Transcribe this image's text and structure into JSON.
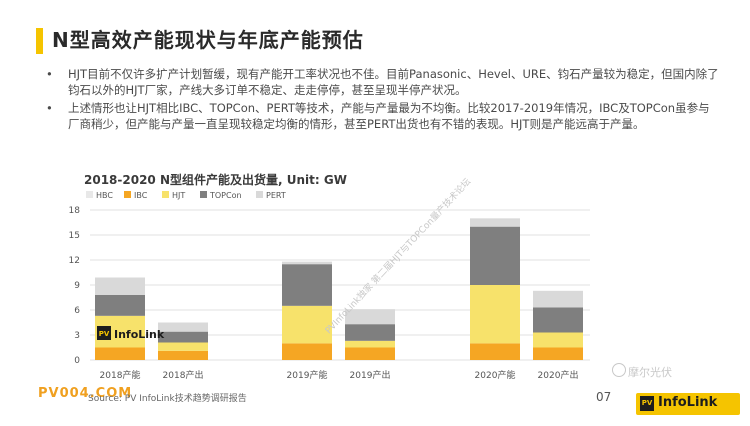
{
  "title": "N型高效产能现状与年底产能预估",
  "bullets": [
    "HJT目前不仅许多扩产计划暂缓，现有产能开工率状况也不佳。目前Panasonic、Hevel、URE、钧石产量较为稳定，但国内除了钧石以外的HJT厂家，产线大多订单不稳定、走走停停，甚至呈现半停产状况。",
    "上述情形也让HJT相比IBC、TOPCon、PERT等技术，产能与产量最为不均衡。比较2017-2019年情况，IBC及TOPCon虽参与厂商稍少，但产能与产量一直呈现较稳定均衡的情形，甚至PERT出货也有不错的表现。HJT则是产能远高于产量。"
  ],
  "bullet_marker": "•",
  "chart_data": {
    "type": "bar",
    "stacked": true,
    "title": "2018-2020 N型组件产能及出货量, Unit: GW",
    "xlabel": "",
    "ylabel": "",
    "ylim": [
      0,
      18
    ],
    "yticks": [
      0,
      3,
      6,
      9,
      12,
      15,
      18
    ],
    "grid": true,
    "legend_position": "top-left",
    "categories": [
      "2018产能",
      "2018产出",
      "2019产能",
      "2019产出",
      "2020产能",
      "2020产出"
    ],
    "series": [
      {
        "name": "HBC",
        "color": "#e8e8e8",
        "values": [
          0,
          0,
          0,
          0,
          0,
          0
        ]
      },
      {
        "name": "IBC",
        "color": "#f5a623",
        "values": [
          1.5,
          1.1,
          2.0,
          1.5,
          2.0,
          1.5
        ]
      },
      {
        "name": "HJT",
        "color": "#f7e26b",
        "values": [
          3.8,
          1.0,
          4.5,
          0.8,
          7.0,
          1.8
        ]
      },
      {
        "name": "TOPCon",
        "color": "#7f7f7f",
        "values": [
          2.5,
          1.3,
          5.0,
          2.0,
          7.0,
          3.0
        ]
      },
      {
        "name": "PERT",
        "color": "#d9d9d9",
        "values": [
          2.1,
          1.1,
          0.3,
          1.8,
          1.0,
          2.0
        ]
      }
    ]
  },
  "watermark_center": "PVInfoLink独家 第二届HJT与TOPCon量产技术论坛",
  "inline_logo": {
    "pv": "PV",
    "text": "InfoLink"
  },
  "source": "Source: PV InfoLink技术趋势调研报告",
  "pv_watermark": "PV004.COM",
  "page_number": "07",
  "wechat_label": "摩尔光伏",
  "logo": {
    "pv": "PV",
    "text": "InfoLink"
  },
  "colors": {
    "accent": "#f5c400"
  }
}
